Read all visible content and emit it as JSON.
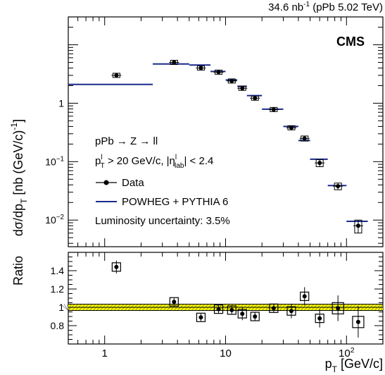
{
  "header": {
    "lumi_base": "34.6 nb",
    "lumi_exp": "-1",
    "lumi_tail": " (pPb 5.02 TeV)"
  },
  "experiment": "CMS",
  "legend": {
    "process": "pPb → Z → ll",
    "cut_pt_a": "p",
    "cut_pt_sup": "l",
    "cut_pt_sub": "T",
    "cut_pt_b": " > 20 GeV/c, |η",
    "cut_eta_sup": "l",
    "cut_eta_sub": "lab",
    "cut_eta_c": "| < 2.4",
    "data_label": "Data",
    "mc_label": "POWHEG + PYTHIA 6",
    "lumi_unc": "Luminosity uncertainty: 3.5%"
  },
  "axes": {
    "ylabel_main": "dσ/dp",
    "ylabel_main_sub": "T",
    "ylabel_main_unit": " [nb (GeV/c)",
    "ylabel_main_exp": "-1",
    "ylabel_main_close": "]",
    "ylabel_ratio": "Ratio",
    "xlabel": "p",
    "xlabel_sub": "T",
    "xlabel_unit": " [GeV/c]"
  },
  "colors": {
    "mc_line": "#1a2a8a",
    "band_fill": "#ffff00",
    "band_edge": "#000000"
  },
  "chart_data": [
    {
      "type": "scatter",
      "panel": "main",
      "xscale": "log",
      "yscale": "log",
      "xlim": [
        0.5,
        200
      ],
      "ylim": [
        0.0035,
        30
      ],
      "xticks": [
        1,
        10,
        100
      ],
      "xticklabels": [
        "1",
        "10",
        "10^2"
      ],
      "yticks": [
        1,
        0.1,
        0.01
      ],
      "yticklabels": [
        "1",
        "10^-1",
        "10^-2"
      ],
      "bins": [
        [
          0.5,
          2.5
        ],
        [
          2.5,
          5
        ],
        [
          5,
          7.5
        ],
        [
          7.5,
          10
        ],
        [
          10,
          12.5
        ],
        [
          12.5,
          15
        ],
        [
          15,
          20
        ],
        [
          20,
          30
        ],
        [
          30,
          40
        ],
        [
          40,
          50
        ],
        [
          50,
          70
        ],
        [
          70,
          100
        ],
        [
          100,
          150
        ]
      ],
      "series": [
        {
          "name": "Data",
          "x": [
            1.25,
            3.75,
            6.25,
            8.75,
            11.25,
            13.75,
            17.5,
            25,
            35,
            45,
            60,
            85,
            125
          ],
          "y": [
            3.0,
            5.0,
            4.0,
            3.4,
            2.4,
            1.8,
            1.22,
            0.78,
            0.38,
            0.25,
            0.095,
            0.038,
            0.008
          ],
          "err_up": [
            0.2,
            0.2,
            0.25,
            0.2,
            0.15,
            0.12,
            0.09,
            0.04,
            0.03,
            0.025,
            0.013,
            0.005,
            0.002
          ],
          "err_dn": [
            0.2,
            0.2,
            0.25,
            0.2,
            0.15,
            0.12,
            0.09,
            0.04,
            0.03,
            0.025,
            0.013,
            0.005,
            0.002
          ]
        },
        {
          "name": "POWHEG + PYTHIA 6",
          "y": [
            2.1,
            4.7,
            4.5,
            3.5,
            2.5,
            1.95,
            1.35,
            0.79,
            0.4,
            0.23,
            0.11,
            0.039,
            0.0095
          ]
        }
      ]
    },
    {
      "type": "scatter",
      "panel": "ratio",
      "xscale": "log",
      "xlim": [
        0.5,
        200
      ],
      "ylim": [
        0.6,
        1.6
      ],
      "yticks": [
        0.8,
        1,
        1.2,
        1.4
      ],
      "yticklabels": [
        "0.8",
        "1",
        "1.2",
        "1.4"
      ],
      "band": [
        0.965,
        1.035
      ],
      "series": [
        {
          "name": "Data/MC",
          "x": [
            1.25,
            3.75,
            6.25,
            8.75,
            11.25,
            13.75,
            17.5,
            25,
            35,
            45,
            60,
            85,
            125
          ],
          "y": [
            1.44,
            1.06,
            0.89,
            0.98,
            0.97,
            0.93,
            0.9,
            0.99,
            0.96,
            1.12,
            0.88,
            0.99,
            0.84
          ],
          "err_up": [
            0.07,
            0.04,
            0.04,
            0.05,
            0.05,
            0.07,
            0.05,
            0.05,
            0.08,
            0.1,
            0.1,
            0.14,
            0.17
          ],
          "err_dn": [
            0.07,
            0.04,
            0.04,
            0.05,
            0.05,
            0.07,
            0.05,
            0.05,
            0.08,
            0.1,
            0.1,
            0.14,
            0.17
          ]
        }
      ]
    }
  ]
}
